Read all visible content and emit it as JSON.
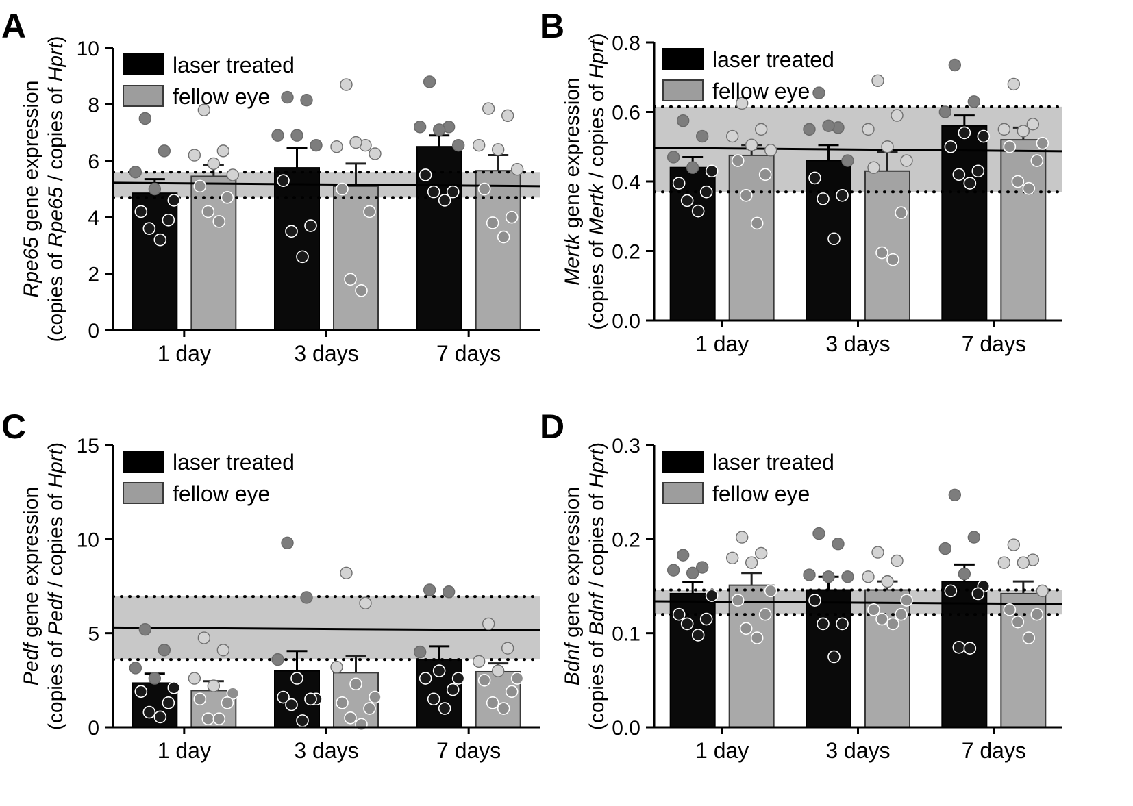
{
  "chart_data": [
    {
      "type": "bar",
      "panel_label": "A",
      "title": "",
      "ylabel_gene": "Rpe65",
      "ylabel_line1_suffix": " gene expression",
      "ylabel_line2": [
        "(copies of ",
        "Rpe65",
        " / copies of ",
        "Hprt",
        ")"
      ],
      "xlabel": "",
      "categories": [
        "1 day",
        "3 days",
        "7 days"
      ],
      "ylim": [
        0,
        10
      ],
      "yticks": [
        0,
        2,
        4,
        6,
        8,
        10
      ],
      "ytick_labels": [
        "0",
        "2",
        "4",
        "6",
        "8",
        "10"
      ],
      "series": [
        {
          "name": "laser treated",
          "color": "#000000",
          "values": [
            4.85,
            5.75,
            6.5
          ],
          "errors": [
            0.5,
            0.7,
            0.4
          ]
        },
        {
          "name": "fellow eye",
          "color": "#9d9d9d",
          "values": [
            5.45,
            5.1,
            5.65
          ],
          "errors": [
            0.4,
            0.8,
            0.55
          ]
        }
      ],
      "points": [
        [
          [
            7.5,
            6.35,
            5.6,
            5.0,
            4.6,
            4.2,
            3.9,
            3.6,
            3.2
          ],
          [
            7.8,
            6.35,
            6.2,
            5.9,
            5.5,
            5.1,
            4.7,
            4.2,
            3.85
          ]
        ],
        [
          [
            8.25,
            8.15,
            6.9,
            6.9,
            6.55,
            5.3,
            3.7,
            3.5,
            2.6
          ],
          [
            8.7,
            6.55,
            6.5,
            6.65,
            6.25,
            5.0,
            4.2,
            1.8,
            1.4
          ]
        ],
        [
          [
            8.8,
            7.2,
            7.2,
            7.1,
            6.55,
            5.5,
            4.9,
            4.9,
            4.6
          ],
          [
            7.85,
            7.6,
            6.55,
            6.4,
            5.7,
            5.0,
            4.0,
            3.8,
            3.3
          ]
        ]
      ],
      "reference": {
        "start": 5.22,
        "end": 5.1,
        "band": [
          4.7,
          5.6
        ]
      },
      "legend": [
        {
          "label": "laser treated",
          "color": "#000000"
        },
        {
          "label": "fellow eye",
          "color": "#9d9d9d"
        }
      ]
    },
    {
      "type": "bar",
      "panel_label": "B",
      "title": "",
      "ylabel_gene": "Mertk",
      "ylabel_line1_suffix": " gene expression",
      "ylabel_line2": [
        "(copies of ",
        "Mertk",
        " / copies of ",
        "Hprt",
        ")"
      ],
      "xlabel": "",
      "categories": [
        "1 day",
        "3 days",
        "7 days"
      ],
      "ylim": [
        0,
        0.8
      ],
      "yticks": [
        0,
        0.2,
        0.4,
        0.6,
        0.8
      ],
      "ytick_labels": [
        "0.0",
        "0.2",
        "0.4",
        "0.6",
        "0.8"
      ],
      "series": [
        {
          "name": "laser treated",
          "color": "#000000",
          "values": [
            0.44,
            0.46,
            0.56
          ],
          "errors": [
            0.03,
            0.045,
            0.03
          ]
        },
        {
          "name": "fellow eye",
          "color": "#9d9d9d",
          "values": [
            0.475,
            0.43,
            0.52
          ],
          "errors": [
            0.03,
            0.055,
            0.035
          ]
        }
      ],
      "points": [
        [
          [
            0.575,
            0.53,
            0.47,
            0.44,
            0.43,
            0.395,
            0.37,
            0.345,
            0.315
          ],
          [
            0.625,
            0.55,
            0.53,
            0.505,
            0.49,
            0.46,
            0.42,
            0.36,
            0.28
          ]
        ],
        [
          [
            0.655,
            0.555,
            0.55,
            0.56,
            0.46,
            0.41,
            0.36,
            0.35,
            0.235
          ],
          [
            0.69,
            0.59,
            0.55,
            0.5,
            0.46,
            0.44,
            0.31,
            0.195,
            0.175
          ]
        ],
        [
          [
            0.735,
            0.63,
            0.6,
            0.54,
            0.53,
            0.5,
            0.43,
            0.42,
            0.395
          ],
          [
            0.68,
            0.565,
            0.55,
            0.545,
            0.51,
            0.5,
            0.46,
            0.4,
            0.38
          ]
        ]
      ],
      "reference": {
        "start": 0.497,
        "end": 0.487,
        "band": [
          0.37,
          0.615
        ]
      },
      "legend": [
        {
          "label": "laser treated",
          "color": "#000000"
        },
        {
          "label": "fellow eye",
          "color": "#9d9d9d"
        }
      ]
    },
    {
      "type": "bar",
      "panel_label": "C",
      "title": "",
      "ylabel_gene": "Pedf",
      "ylabel_line1_suffix": " gene expression",
      "ylabel_line2": [
        "(copies of ",
        "Pedf",
        " / copies of ",
        "Hprt",
        ")"
      ],
      "xlabel": "",
      "categories": [
        "1 day",
        "3 days",
        "7 days"
      ],
      "ylim": [
        0,
        15
      ],
      "yticks": [
        0,
        5,
        10,
        15
      ],
      "ytick_labels": [
        "0",
        "5",
        "10",
        "15"
      ],
      "series": [
        {
          "name": "laser treated",
          "color": "#000000",
          "values": [
            2.35,
            3.0,
            3.6
          ],
          "errors": [
            0.5,
            1.05,
            0.7
          ]
        },
        {
          "name": "fellow eye",
          "color": "#9d9d9d",
          "values": [
            1.95,
            2.9,
            2.95
          ],
          "errors": [
            0.5,
            0.9,
            0.45
          ]
        }
      ],
      "points": [
        [
          [
            5.2,
            4.1,
            3.15,
            2.6,
            2.1,
            1.9,
            1.3,
            0.8,
            0.55
          ],
          [
            4.75,
            4.1,
            2.6,
            2.2,
            1.8,
            1.5,
            1.3,
            0.45,
            0.45
          ]
        ],
        [
          [
            9.8,
            6.9,
            3.6,
            2.6,
            1.5,
            1.6,
            1.5,
            1.2,
            0.35
          ],
          [
            8.2,
            6.6,
            3.2,
            2.3,
            1.6,
            1.3,
            1.0,
            0.5,
            0.15
          ]
        ],
        [
          [
            7.3,
            7.2,
            4.0,
            3.0,
            2.6,
            2.6,
            2.0,
            1.5,
            1.0
          ],
          [
            5.5,
            4.2,
            3.5,
            3.0,
            2.6,
            2.5,
            1.9,
            1.3,
            1.0
          ]
        ]
      ],
      "reference": {
        "start": 5.3,
        "end": 5.15,
        "band": [
          3.6,
          6.95
        ]
      },
      "legend": [
        {
          "label": "laser treated",
          "color": "#000000"
        },
        {
          "label": "fellow eye",
          "color": "#9d9d9d"
        }
      ]
    },
    {
      "type": "bar",
      "panel_label": "D",
      "title": "",
      "ylabel_gene": "Bdnf",
      "ylabel_line1_suffix": " gene expression",
      "ylabel_line2": [
        "(copies of ",
        "Bdnf",
        " / copies of ",
        "Hprt",
        ")"
      ],
      "xlabel": "",
      "categories": [
        "1 day",
        "3 days",
        "7 days"
      ],
      "ylim": [
        0,
        0.3
      ],
      "yticks": [
        0,
        0.1,
        0.2,
        0.3
      ],
      "ytick_labels": [
        "0.0",
        "0.1",
        "0.2",
        "0.3"
      ],
      "series": [
        {
          "name": "laser treated",
          "color": "#000000",
          "values": [
            0.142,
            0.146,
            0.155
          ],
          "errors": [
            0.012,
            0.014,
            0.018
          ]
        },
        {
          "name": "fellow eye",
          "color": "#9d9d9d",
          "values": [
            0.151,
            0.146,
            0.142
          ],
          "errors": [
            0.013,
            0.009,
            0.013
          ]
        }
      ],
      "points": [
        [
          [
            0.183,
            0.17,
            0.167,
            0.164,
            0.14,
            0.12,
            0.115,
            0.11,
            0.098
          ],
          [
            0.202,
            0.185,
            0.18,
            0.175,
            0.145,
            0.135,
            0.12,
            0.105,
            0.095
          ]
        ],
        [
          [
            0.206,
            0.195,
            0.162,
            0.16,
            0.16,
            0.135,
            0.11,
            0.11,
            0.075
          ],
          [
            0.186,
            0.177,
            0.16,
            0.155,
            0.135,
            0.125,
            0.12,
            0.115,
            0.11
          ]
        ],
        [
          [
            0.247,
            0.202,
            0.19,
            0.163,
            0.15,
            0.145,
            0.142,
            0.085,
            0.084
          ],
          [
            0.194,
            0.178,
            0.175,
            0.175,
            0.145,
            0.125,
            0.12,
            0.112,
            0.095
          ]
        ]
      ],
      "reference": {
        "start": 0.134,
        "end": 0.131,
        "band": [
          0.12,
          0.146
        ]
      },
      "legend": [
        {
          "label": "laser treated",
          "color": "#000000"
        },
        {
          "label": "fellow eye",
          "color": "#9d9d9d"
        }
      ]
    }
  ]
}
